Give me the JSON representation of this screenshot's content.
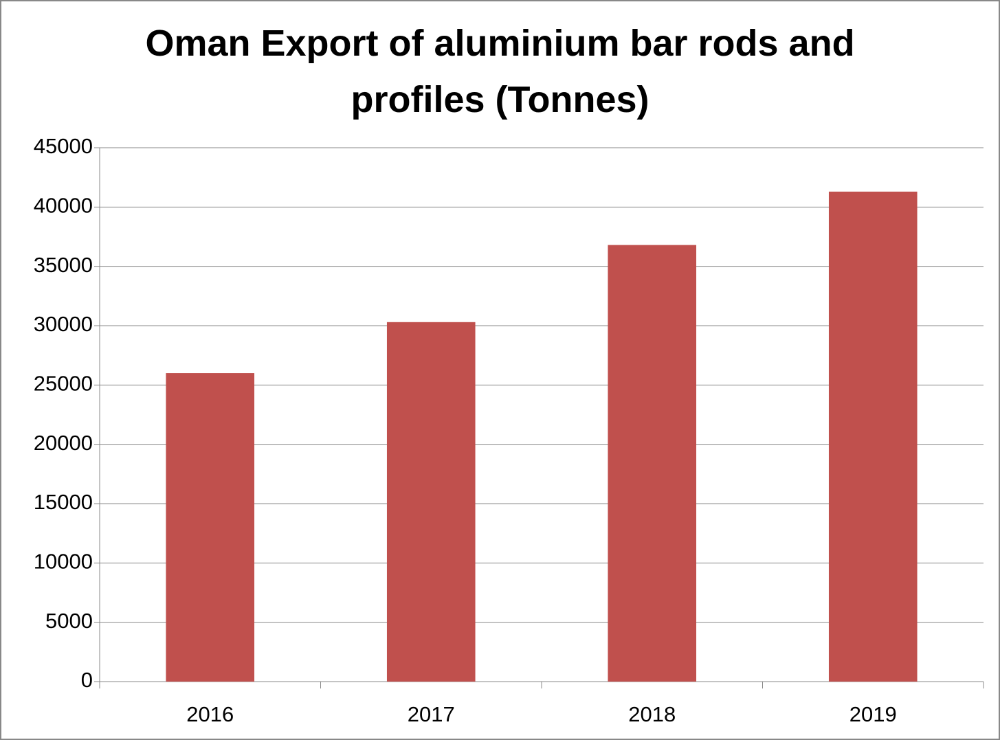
{
  "chart_data": {
    "type": "bar",
    "title": "Oman Export of aluminium bar rods and profiles (Tonnes)",
    "categories": [
      "2016",
      "2017",
      "2018",
      "2019"
    ],
    "values": [
      26000,
      30300,
      36800,
      41300
    ],
    "color": "#c0504d",
    "ylim": [
      0,
      45000
    ],
    "yticks": [
      0,
      5000,
      10000,
      15000,
      20000,
      25000,
      30000,
      35000,
      40000,
      45000
    ],
    "grid": true
  }
}
